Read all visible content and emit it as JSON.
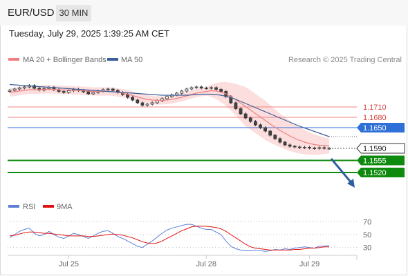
{
  "header": {
    "symbol": "EUR/USD",
    "timeframe": "30 MIN"
  },
  "datetime": "Tuesday, July 29, 2025 1:39:25 AM CET",
  "credit": "Research © 2025 Trading Central",
  "colors": {
    "ma20": "#f08080",
    "bands": "#fcdede",
    "ma50": "#3a5f99",
    "candle_up": "#444444",
    "candle_dn": "#444444",
    "resistance": "#f08080",
    "pivot": "#2f6fd8",
    "support": "#0e8a0e",
    "rsi": "#5b7fd6",
    "rsi_ma": "#e01010",
    "arrow": "#2f5f9f"
  },
  "chart_data": [
    {
      "type": "line",
      "legend": [
        {
          "name": "MA 20 + Bollinger Bands",
          "color": "#f08080"
        },
        {
          "name": "MA 50",
          "color": "#3a5f99"
        }
      ],
      "legend_position": "top-left",
      "x_ticks": [
        "Jul 25",
        "Jul 28",
        "Jul 29"
      ],
      "ylim": [
        1.148,
        1.182
      ],
      "grid": false,
      "levels": [
        {
          "label": "1.1710",
          "value": 1.171,
          "kind": "resistance",
          "color": "#f08080"
        },
        {
          "label": "1.1680",
          "value": 1.168,
          "kind": "resistance",
          "color": "#f08080"
        },
        {
          "label": "1.1650",
          "value": 1.165,
          "kind": "pivot",
          "color": "#2f6fd8"
        },
        {
          "label": "1.1590",
          "value": 1.159,
          "kind": "last",
          "color": "#333333"
        },
        {
          "label": "1.1555",
          "value": 1.1555,
          "kind": "support",
          "color": "#0e8a0e"
        },
        {
          "label": "1.1520",
          "value": 1.152,
          "kind": "support",
          "color": "#0e8a0e"
        }
      ],
      "close": [
        1.1758,
        1.1762,
        1.1765,
        1.1768,
        1.1772,
        1.1764,
        1.1759,
        1.1763,
        1.1767,
        1.176,
        1.1755,
        1.1752,
        1.1757,
        1.1761,
        1.1758,
        1.1754,
        1.1748,
        1.1752,
        1.1756,
        1.176,
        1.1762,
        1.1758,
        1.1752,
        1.1746,
        1.1738,
        1.173,
        1.1722,
        1.1715,
        1.1718,
        1.1722,
        1.1728,
        1.1734,
        1.174,
        1.1745,
        1.175,
        1.1756,
        1.1762,
        1.1766,
        1.1768,
        1.1765,
        1.1764,
        1.1766,
        1.1761,
        1.1755,
        1.174,
        1.1722,
        1.1705,
        1.169,
        1.1678,
        1.1668,
        1.1658,
        1.165,
        1.164,
        1.1628,
        1.1618,
        1.1608,
        1.16,
        1.1596,
        1.1594,
        1.1592,
        1.1593,
        1.1591,
        1.159,
        1.1592,
        1.159,
        1.159
      ],
      "ma20": [
        1.1752,
        1.1754,
        1.1756,
        1.1758,
        1.176,
        1.176,
        1.176,
        1.1761,
        1.1761,
        1.1761,
        1.176,
        1.1759,
        1.1759,
        1.1758,
        1.1758,
        1.1757,
        1.1756,
        1.1755,
        1.1755,
        1.1755,
        1.1755,
        1.1754,
        1.1752,
        1.175,
        1.1747,
        1.1743,
        1.1739,
        1.1735,
        1.1732,
        1.173,
        1.1729,
        1.1729,
        1.173,
        1.1732,
        1.1735,
        1.1738,
        1.1742,
        1.1746,
        1.175,
        1.1753,
        1.1755,
        1.1757,
        1.1756,
        1.1753,
        1.1748,
        1.174,
        1.1731,
        1.1721,
        1.1711,
        1.1701,
        1.1691,
        1.1681,
        1.1671,
        1.1661,
        1.1651,
        1.1642,
        1.1634,
        1.1626,
        1.1619,
        1.1613,
        1.1608,
        1.1604,
        1.1601,
        1.1599,
        1.1598,
        1.1597
      ],
      "ma50": [
        1.1775,
        1.1774,
        1.1773,
        1.1772,
        1.1771,
        1.177,
        1.1769,
        1.1768,
        1.1767,
        1.1766,
        1.1765,
        1.1764,
        1.1763,
        1.1762,
        1.1761,
        1.176,
        1.1759,
        1.1758,
        1.1757,
        1.1756,
        1.1755,
        1.1754,
        1.1753,
        1.1752,
        1.1751,
        1.175,
        1.1749,
        1.1748,
        1.1747,
        1.1746,
        1.1745,
        1.1744,
        1.1744,
        1.1744,
        1.1744,
        1.1744,
        1.1744,
        1.1745,
        1.1746,
        1.1747,
        1.1747,
        1.1747,
        1.1746,
        1.1744,
        1.1741,
        1.1737,
        1.1732,
        1.1726,
        1.172,
        1.1714,
        1.1708,
        1.1702,
        1.1696,
        1.169,
        1.1684,
        1.1678,
        1.1672,
        1.1666,
        1.166,
        1.1654,
        1.1649,
        1.1644,
        1.1639,
        1.1634,
        1.1629,
        1.1624
      ]
    },
    {
      "type": "line",
      "legend": [
        {
          "name": "RSI",
          "color": "#5b7fd6"
        },
        {
          "name": "9MA",
          "color": "#e01010"
        }
      ],
      "legend_position": "top-left",
      "ylim": [
        20,
        80
      ],
      "y_ticks": [
        70,
        50,
        30
      ],
      "rsi": [
        45,
        50,
        55,
        58,
        60,
        52,
        48,
        50,
        55,
        50,
        46,
        44,
        48,
        52,
        50,
        47,
        44,
        48,
        52,
        55,
        56,
        52,
        47,
        44,
        40,
        36,
        32,
        30,
        35,
        40,
        46,
        52,
        57,
        60,
        62,
        64,
        66,
        66,
        63,
        60,
        58,
        58,
        54,
        50,
        40,
        32,
        28,
        26,
        25,
        25,
        26,
        25,
        24,
        25,
        27,
        26,
        28,
        27,
        29,
        30,
        31,
        30,
        29,
        32,
        32,
        33
      ],
      "rsi_ma": [
        48,
        49,
        51,
        53,
        54,
        54,
        53,
        52,
        52,
        51,
        50,
        49,
        48,
        48,
        48,
        48,
        47,
        47,
        48,
        49,
        50,
        51,
        50,
        49,
        47,
        45,
        42,
        39,
        37,
        36,
        37,
        40,
        44,
        48,
        52,
        56,
        59,
        62,
        63,
        63,
        63,
        62,
        61,
        59,
        55,
        50,
        45,
        40,
        35,
        31,
        29,
        28,
        27,
        26,
        26,
        26,
        26,
        26,
        27,
        27,
        28,
        29,
        29,
        30,
        31,
        31
      ]
    }
  ]
}
